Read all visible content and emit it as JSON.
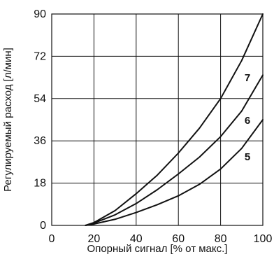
{
  "chart_data": {
    "type": "line",
    "xlabel": "Опорный сигнал [% от макс.]",
    "ylabel": "Регулируемый расход [л/мин]",
    "xlim": [
      0,
      100
    ],
    "ylim": [
      0,
      90
    ],
    "x_ticks": [
      0,
      20,
      40,
      60,
      80,
      100
    ],
    "y_ticks": [
      0,
      18,
      36,
      54,
      72,
      90
    ],
    "x_tick_labels": [
      "0",
      "20",
      "40",
      "60",
      "80",
      "100"
    ],
    "y_tick_labels": [
      "0",
      "18",
      "36",
      "54",
      "72",
      "90"
    ],
    "grid": true,
    "line_color": "#111111",
    "series": [
      {
        "name": "7",
        "points": [
          [
            16,
            0
          ],
          [
            20,
            1.2
          ],
          [
            30,
            6.3
          ],
          [
            40,
            13.5
          ],
          [
            50,
            21.4
          ],
          [
            60,
            30.8
          ],
          [
            70,
            41.4
          ],
          [
            80,
            54.0
          ],
          [
            90,
            70.2
          ],
          [
            100,
            90.0
          ]
        ]
      },
      {
        "name": "6",
        "points": [
          [
            16,
            0
          ],
          [
            20,
            1.0
          ],
          [
            30,
            4.5
          ],
          [
            40,
            9.3
          ],
          [
            50,
            15.2
          ],
          [
            60,
            21.9
          ],
          [
            70,
            29.1
          ],
          [
            80,
            37.8
          ],
          [
            90,
            48.7
          ],
          [
            100,
            64.0
          ]
        ]
      },
      {
        "name": "5",
        "points": [
          [
            16,
            0
          ],
          [
            20,
            0.6
          ],
          [
            30,
            2.6
          ],
          [
            40,
            5.5
          ],
          [
            50,
            8.8
          ],
          [
            60,
            12.6
          ],
          [
            70,
            17.5
          ],
          [
            80,
            24.0
          ],
          [
            90,
            32.8
          ],
          [
            100,
            45.0
          ]
        ]
      }
    ]
  }
}
